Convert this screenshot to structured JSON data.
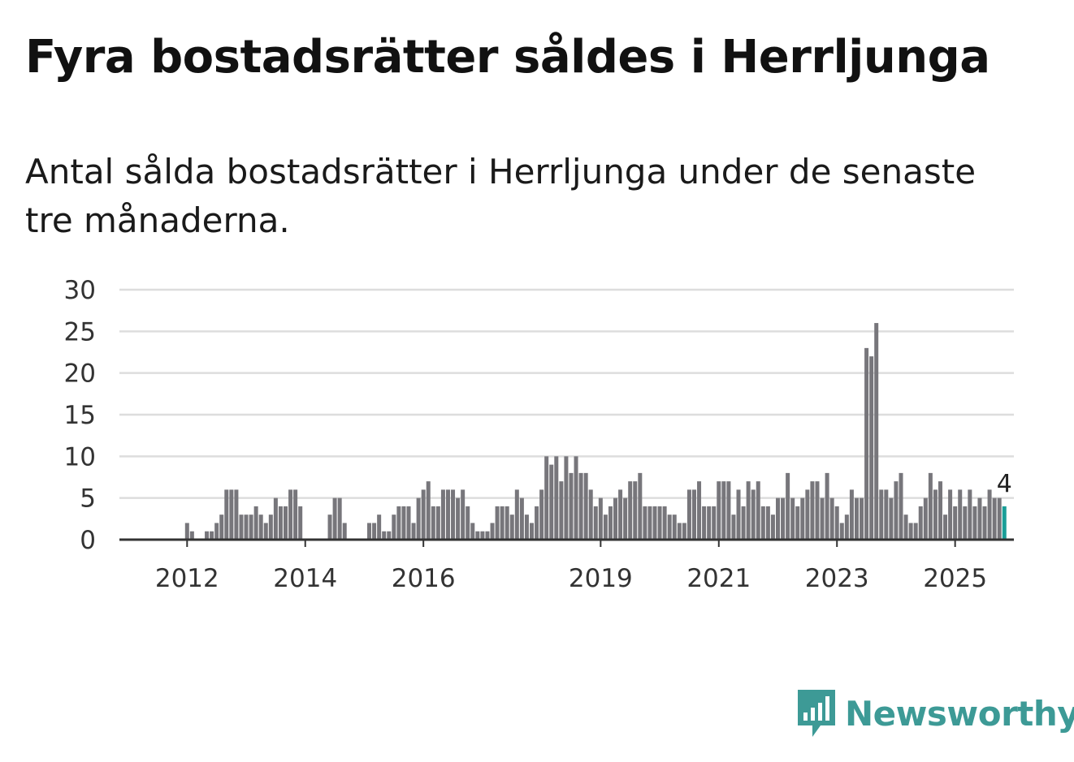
{
  "title": "Fyra bostadsrätter såldes i Herrljunga",
  "subtitle": "Antal sålda bostadsrätter i Herrljunga under de senaste tre månaderna.",
  "brand": {
    "name": "Newsworthy",
    "color": "#3d9a96",
    "icon": "bar-chart-speech-bubble-icon"
  },
  "colors": {
    "bar": "#77767b",
    "highlight": "#1a9e98",
    "grid": "#dddddd",
    "axis": "#333333"
  },
  "chart_data": {
    "type": "bar",
    "title": "",
    "xlabel": "",
    "ylabel": "",
    "ylim": [
      0,
      30
    ],
    "yticks": [
      0,
      5,
      10,
      15,
      20,
      25,
      30
    ],
    "grid": true,
    "start": "2011-08",
    "x_ticks": [
      {
        "label": "2012",
        "month": "2012-01"
      },
      {
        "label": "2014",
        "month": "2014-01"
      },
      {
        "label": "2016",
        "month": "2016-01"
      },
      {
        "label": "2019",
        "month": "2019-01"
      },
      {
        "label": "2021",
        "month": "2021-01"
      },
      {
        "label": "2023",
        "month": "2023-01"
      },
      {
        "label": "2025",
        "month": "2025-01"
      }
    ],
    "values": [
      0,
      0,
      0,
      0,
      0,
      2,
      1,
      0,
      0,
      1,
      1,
      2,
      3,
      6,
      6,
      6,
      3,
      3,
      3,
      4,
      3,
      2,
      3,
      5,
      4,
      4,
      6,
      6,
      4,
      0,
      0,
      0,
      0,
      0,
      3,
      5,
      5,
      2,
      0,
      0,
      0,
      0,
      2,
      2,
      3,
      1,
      1,
      3,
      4,
      4,
      4,
      2,
      5,
      6,
      7,
      4,
      4,
      6,
      6,
      6,
      5,
      6,
      4,
      2,
      1,
      1,
      1,
      2,
      4,
      4,
      4,
      3,
      6,
      5,
      3,
      2,
      4,
      6,
      10,
      9,
      10,
      7,
      10,
      8,
      10,
      8,
      8,
      6,
      4,
      5,
      3,
      4,
      5,
      6,
      5,
      7,
      7,
      8,
      4,
      4,
      4,
      4,
      4,
      3,
      3,
      2,
      2,
      6,
      6,
      7,
      4,
      4,
      4,
      7,
      7,
      7,
      3,
      6,
      4,
      7,
      6,
      7,
      4,
      4,
      3,
      5,
      5,
      8,
      5,
      4,
      5,
      6,
      7,
      7,
      5,
      8,
      5,
      4,
      2,
      3,
      6,
      5,
      5,
      23,
      22,
      26,
      6,
      6,
      5,
      7,
      8,
      3,
      2,
      2,
      4,
      5,
      8,
      6,
      7,
      3,
      6,
      4,
      6,
      4,
      6,
      4,
      5,
      4,
      6,
      5,
      5,
      4
    ],
    "highlight_last": true,
    "highlight_label": "4"
  }
}
